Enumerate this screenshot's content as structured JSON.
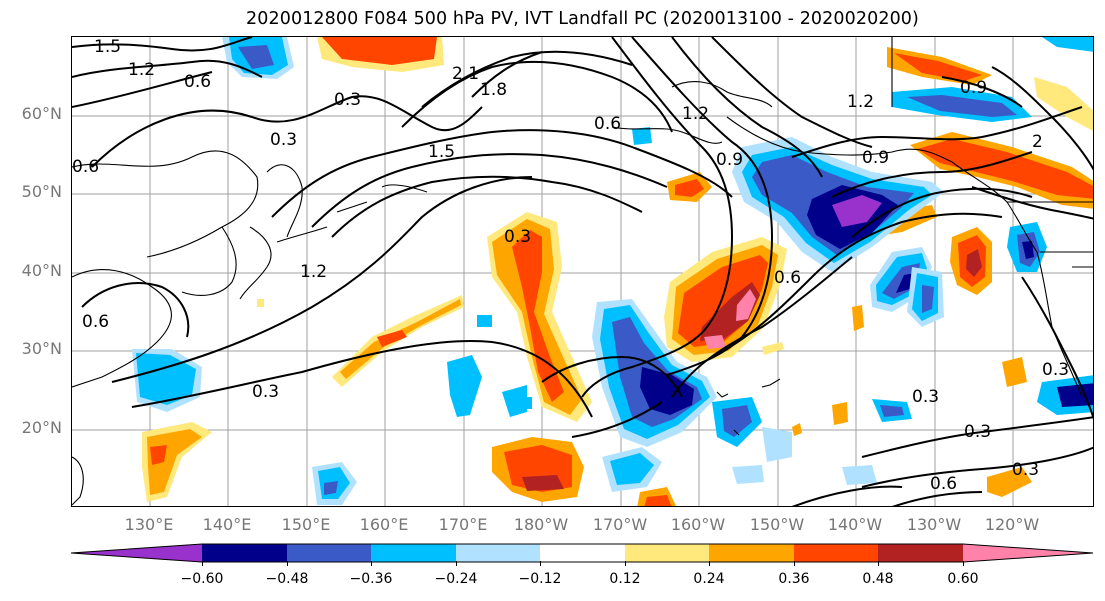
{
  "title": "2020012800 F084 500 hPa PV, IVT Landfall PC (2020013100 - 2020020200)",
  "latitude_labels": [
    "60°N",
    "50°N",
    "40°N",
    "30°N",
    "20°N"
  ],
  "longitude_labels": [
    "130°E",
    "140°E",
    "150°E",
    "160°E",
    "170°E",
    "180°W",
    "170°W",
    "160°W",
    "150°W",
    "140°W",
    "130°W",
    "120°W"
  ],
  "contour_labels": [
    "1.5",
    "1.2",
    "0.6",
    "0.3",
    "0.3",
    "2.1",
    "1.8",
    "0.6",
    "1.5",
    "1.2",
    "0.9",
    "0.3",
    "0.6",
    "1.2",
    "0.9",
    "0.6",
    "2",
    "0.6",
    "1.2",
    "0.3",
    "0.3",
    "0.3",
    "0.6",
    "0.3",
    "0.3",
    "0.9"
  ],
  "colorbar": {
    "ticks": [
      "−0.60",
      "−0.48",
      "−0.36",
      "−0.24",
      "−0.12",
      "0.12",
      "0.24",
      "0.36",
      "0.48",
      "0.60"
    ],
    "colors": [
      "#9932cc",
      "#00008b",
      "#3a5bc7",
      "#00bfff",
      "#b0e2ff",
      "#ffffff",
      "#ffe87c",
      "#ffa500",
      "#ff4500",
      "#b22222",
      "#ff82ab"
    ]
  }
}
